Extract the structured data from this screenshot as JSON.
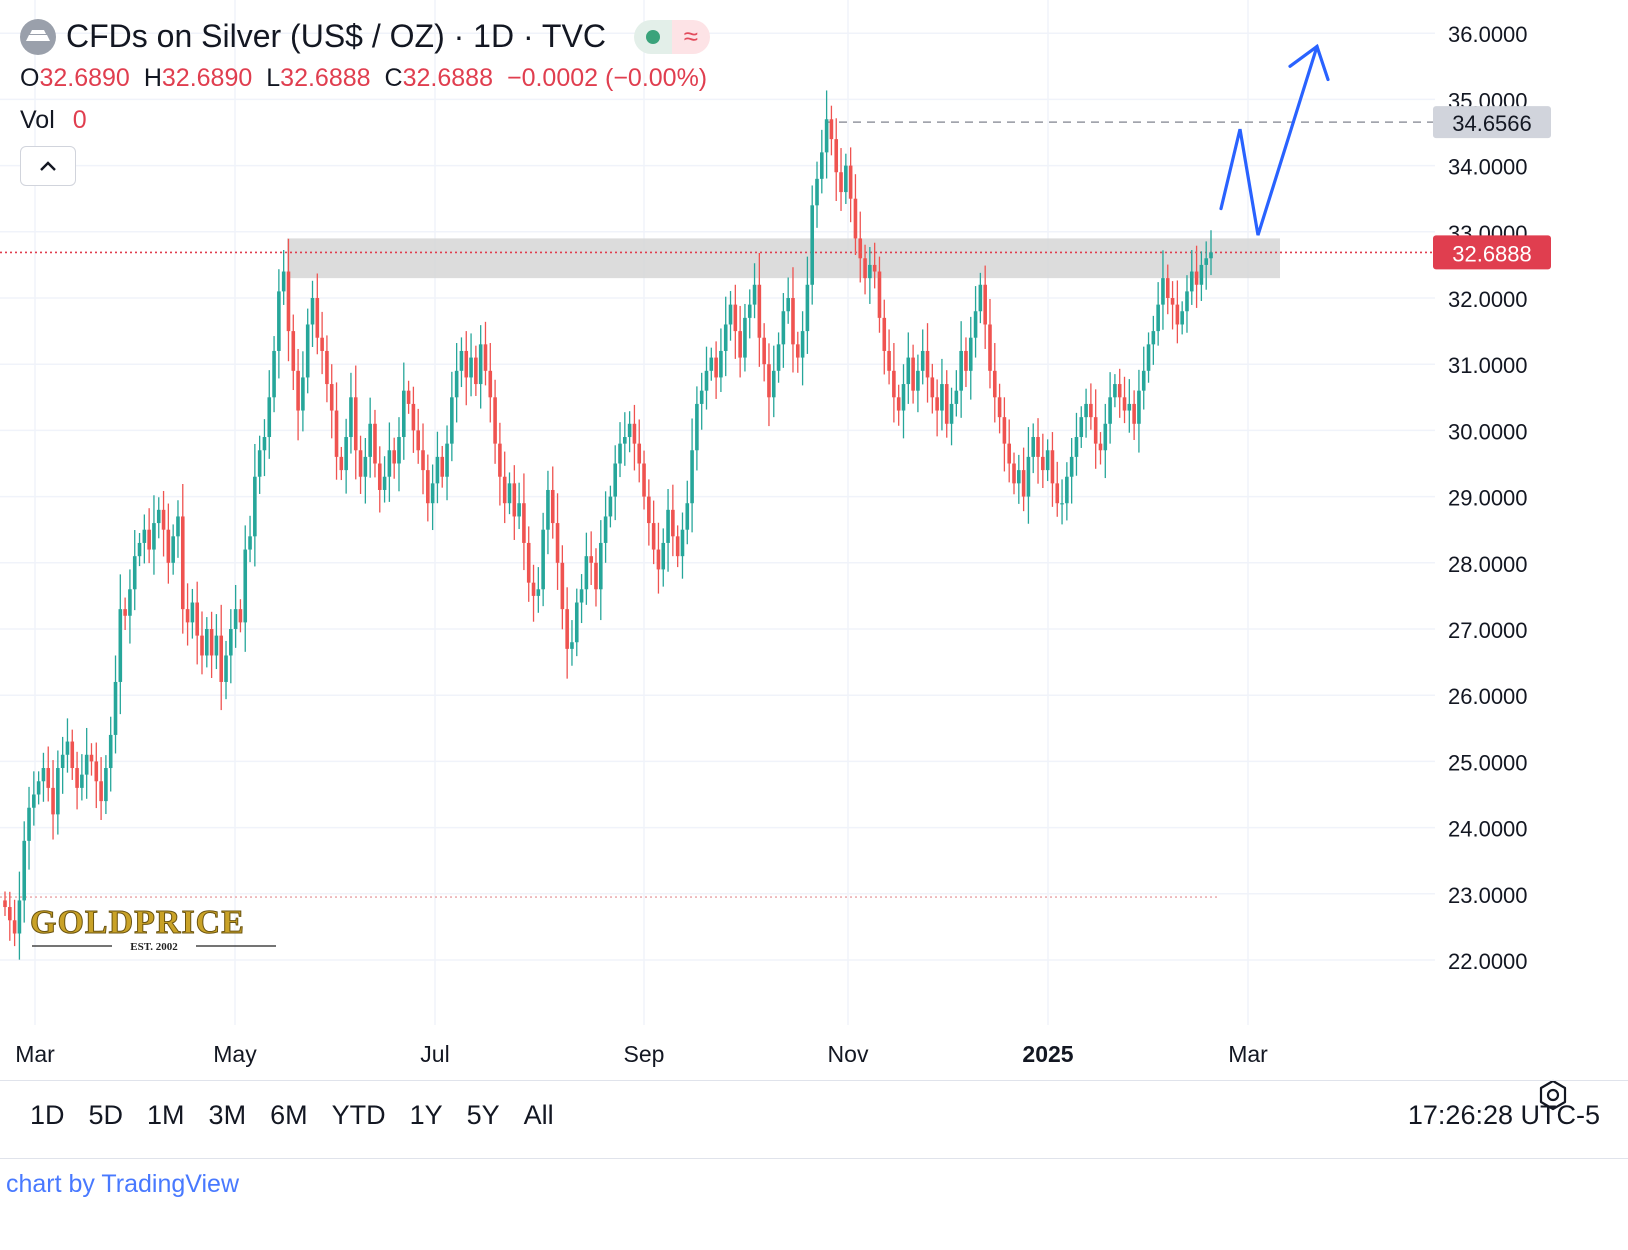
{
  "header": {
    "title": "CFDs on Silver (US$ / OZ) · 1D · TVC",
    "status_wave": "≈"
  },
  "ohlc": {
    "o_label": "O",
    "o_value": "32.6890",
    "h_label": "H",
    "h_value": "32.6890",
    "l_label": "L",
    "l_value": "32.6888",
    "c_label": "C",
    "c_value": "32.6888",
    "change": "−0.0002 (−0.00%)"
  },
  "volume": {
    "label": "Vol",
    "value": "0"
  },
  "timeframes": [
    "1D",
    "5D",
    "1M",
    "3M",
    "6M",
    "YTD",
    "1Y",
    "5Y",
    "All"
  ],
  "clock": "17:26:28 UTC-5",
  "credit": "chart by TradingView",
  "watermark": {
    "brand": "GOLDPRICE",
    "est": "EST. 2002"
  },
  "colors": {
    "up": "#26a69a",
    "down": "#ef5350",
    "projection": "#2962ff",
    "last_price_tag": "#e03e4f"
  },
  "chart_data": {
    "type": "candlestick",
    "series_name": "CFDs on Silver (US$ / OZ)",
    "y_ticks": [
      "22.0000",
      "23.0000",
      "24.0000",
      "25.0000",
      "26.0000",
      "27.0000",
      "28.0000",
      "29.0000",
      "30.0000",
      "31.0000",
      "32.0000",
      "33.0000",
      "34.0000",
      "35.0000",
      "36.0000"
    ],
    "x_ticks": [
      "Mar",
      "May",
      "Jul",
      "Sep",
      "Nov",
      "2025",
      "Mar"
    ],
    "ylim": [
      21.2,
      36.4
    ],
    "last_price": "32.6888",
    "marked_high": "34.6566",
    "resistance_zone": [
      32.3,
      32.9
    ],
    "grid": true,
    "daily_closes": [
      22.8,
      22.6,
      22.4,
      22.9,
      23.8,
      24.3,
      24.5,
      24.7,
      24.9,
      24.6,
      24.2,
      24.9,
      25.1,
      25.3,
      24.9,
      24.6,
      24.8,
      25.1,
      25.0,
      24.7,
      24.4,
      24.9,
      25.4,
      26.2,
      27.3,
      27.2,
      27.6,
      28.1,
      28.3,
      28.5,
      28.2,
      28.6,
      28.8,
      28.5,
      28.0,
      28.4,
      28.7,
      27.3,
      27.1,
      27.4,
      26.9,
      26.6,
      27.0,
      26.6,
      26.9,
      26.2,
      26.6,
      27.0,
      27.3,
      27.1,
      28.2,
      28.4,
      29.3,
      29.7,
      29.9,
      30.5,
      31.2,
      32.1,
      32.4,
      31.5,
      30.9,
      30.3,
      30.8,
      31.6,
      32.0,
      31.4,
      31.2,
      30.7,
      30.3,
      29.6,
      29.4,
      29.9,
      30.5,
      29.7,
      29.3,
      29.6,
      30.1,
      29.5,
      29.1,
      29.3,
      29.7,
      29.5,
      29.9,
      30.6,
      30.4,
      30.0,
      29.7,
      29.4,
      28.9,
      29.2,
      29.6,
      29.3,
      29.8,
      30.5,
      30.9,
      31.2,
      30.8,
      31.1,
      30.7,
      31.3,
      30.9,
      30.5,
      29.8,
      29.3,
      28.9,
      29.2,
      28.7,
      28.9,
      28.3,
      27.7,
      27.5,
      27.6,
      28.5,
      29.1,
      28.6,
      28.0,
      27.3,
      26.7,
      26.8,
      27.4,
      27.6,
      28.1,
      28.0,
      27.6,
      28.3,
      28.7,
      29.0,
      29.5,
      29.8,
      29.9,
      30.1,
      29.8,
      29.5,
      29.0,
      28.6,
      28.2,
      27.9,
      28.3,
      28.8,
      28.4,
      28.1,
      28.5,
      28.9,
      29.7,
      30.4,
      30.6,
      30.9,
      31.1,
      30.8,
      31.2,
      31.6,
      31.9,
      31.5,
      31.1,
      31.7,
      31.9,
      32.2,
      31.4,
      31.0,
      30.5,
      30.9,
      31.3,
      31.8,
      32.0,
      31.3,
      31.1,
      31.5,
      32.2,
      33.4,
      33.8,
      34.2,
      34.7,
      34.4,
      33.9,
      33.6,
      34.0,
      33.5,
      32.9,
      32.6,
      32.3,
      32.5,
      32.4,
      31.7,
      31.2,
      30.9,
      30.5,
      30.3,
      30.7,
      31.1,
      30.6,
      30.9,
      31.2,
      30.8,
      30.5,
      30.3,
      30.7,
      30.1,
      30.4,
      30.6,
      31.2,
      30.9,
      31.4,
      31.8,
      32.2,
      31.6,
      30.9,
      30.5,
      30.2,
      29.8,
      29.5,
      29.2,
      29.4,
      29.0,
      29.6,
      29.9,
      29.6,
      29.4,
      29.7,
      29.2,
      28.9,
      28.9,
      29.3,
      29.6,
      29.9,
      30.2,
      30.4,
      30.2,
      29.8,
      29.7,
      30.1,
      30.5,
      30.7,
      30.5,
      30.3,
      30.4,
      30.1,
      30.6,
      30.9,
      31.3,
      31.5,
      31.9,
      32.3,
      32.0,
      31.9,
      31.6,
      31.8,
      32.1,
      32.4,
      32.2,
      32.5,
      32.6,
      32.69
    ]
  }
}
